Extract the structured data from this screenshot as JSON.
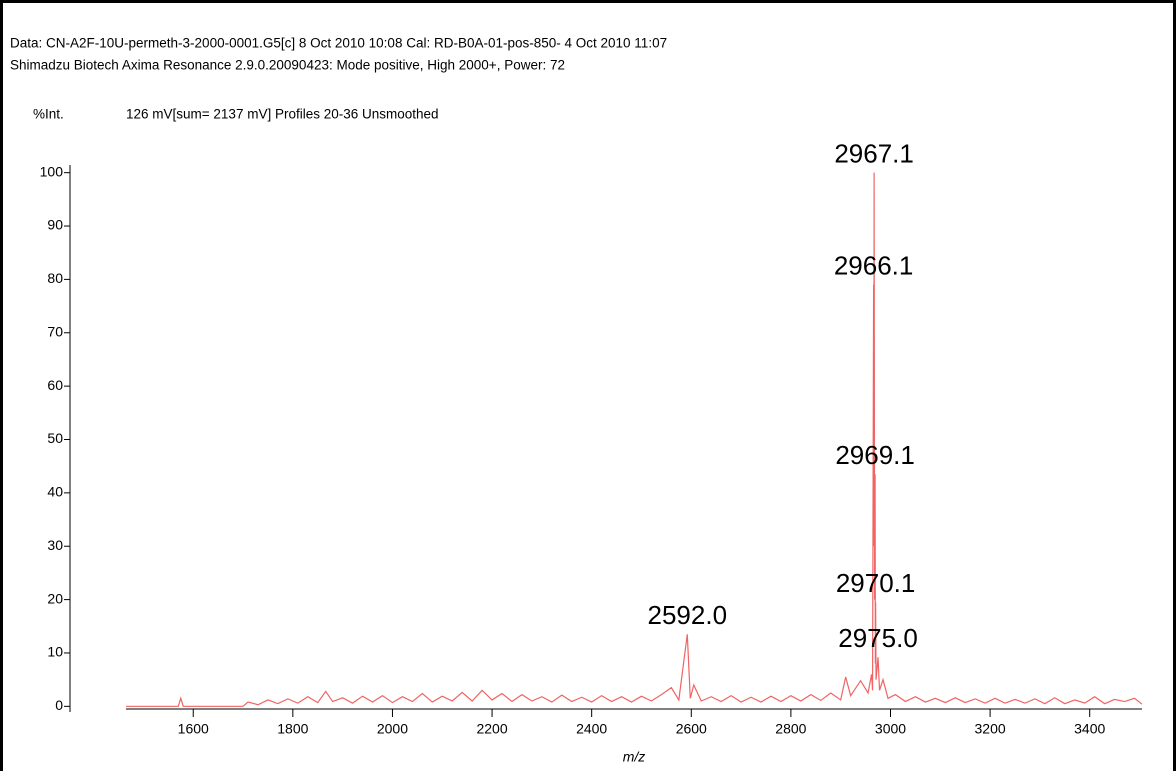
{
  "chart_data": {
    "type": "line",
    "header": [
      "Data: CN-A2F-10U-permeth-3-2000-0001.G5[c] 8 Oct 2010 10:08 Cal: RD-B0A-01-pos-850- 4 Oct 2010 11:07",
      "Shimadzu Biotech Axima Resonance 2.9.0.20090423: Mode positive, High 2000+, Power: 72"
    ],
    "ylabel": "%Int.",
    "subtitle": "126 mV[sum= 2137 mV]  Profiles 20-36 Unsmoothed",
    "xlabel": "m/z",
    "xlim": [
      1465,
      3505
    ],
    "ylim": [
      -0.5,
      100.5
    ],
    "xticks": [
      1600,
      1800,
      2000,
      2200,
      2400,
      2600,
      2800,
      3000,
      3200,
      3400
    ],
    "yticks": [
      0,
      10,
      20,
      30,
      40,
      50,
      60,
      70,
      80,
      90,
      100
    ],
    "x": [
      1465,
      1570,
      1575,
      1580,
      1700,
      1710,
      1730,
      1750,
      1770,
      1790,
      1810,
      1830,
      1850,
      1866,
      1880,
      1900,
      1920,
      1940,
      1960,
      1980,
      2000,
      2020,
      2040,
      2060,
      2080,
      2100,
      2120,
      2140,
      2160,
      2180,
      2200,
      2220,
      2240,
      2260,
      2280,
      2300,
      2320,
      2340,
      2360,
      2380,
      2400,
      2420,
      2440,
      2460,
      2480,
      2500,
      2520,
      2540,
      2560,
      2575,
      2592,
      2598,
      2605,
      2620,
      2640,
      2660,
      2680,
      2700,
      2720,
      2740,
      2760,
      2780,
      2800,
      2820,
      2840,
      2860,
      2880,
      2900,
      2910,
      2920,
      2940,
      2955,
      2962,
      2964,
      2966.1,
      2966.6,
      2967.1,
      2968.1,
      2969.1,
      2969.6,
      2970.1,
      2971,
      2975,
      2978,
      2985,
      2995,
      3010,
      3030,
      3050,
      3070,
      3090,
      3110,
      3130,
      3150,
      3170,
      3190,
      3210,
      3230,
      3250,
      3270,
      3290,
      3310,
      3330,
      3350,
      3370,
      3390,
      3410,
      3430,
      3450,
      3470,
      3490,
      3505
    ],
    "series": [
      {
        "color": "#f06464",
        "values": [
          0,
          0,
          1.5,
          0,
          0,
          0.8,
          0.3,
          1.2,
          0.5,
          1.4,
          0.6,
          1.8,
          0.7,
          2.8,
          0.9,
          1.6,
          0.6,
          1.9,
          0.8,
          2.0,
          0.7,
          1.8,
          0.9,
          2.4,
          0.8,
          1.9,
          1.0,
          2.6,
          1.0,
          3.0,
          1.2,
          2.4,
          0.9,
          2.2,
          1.0,
          1.8,
          0.8,
          2.1,
          0.9,
          1.7,
          0.8,
          2.0,
          0.9,
          1.8,
          0.8,
          1.9,
          1.0,
          2.2,
          3.5,
          1.2,
          13.5,
          1.5,
          4,
          1.0,
          1.8,
          0.9,
          2.0,
          0.8,
          1.7,
          0.8,
          1.9,
          0.9,
          2.0,
          1.0,
          2.2,
          1.1,
          2.5,
          1.2,
          5.5,
          2.0,
          4.8,
          2.5,
          6,
          3,
          79,
          30,
          100,
          20,
          43.5,
          8,
          19.5,
          5,
          9.2,
          3,
          5,
          1.5,
          2.2,
          0.9,
          1.8,
          0.8,
          1.5,
          0.7,
          1.6,
          0.7,
          1.4,
          0.6,
          1.5,
          0.6,
          1.3,
          0.6,
          1.4,
          0.5,
          1.6,
          0.5,
          1.2,
          0.6,
          1.8,
          0.5,
          1.3,
          0.9,
          1.5,
          0.4
        ]
      }
    ],
    "annotations": [
      {
        "text": "2967.1",
        "x": 2967.1,
        "y": 100
      },
      {
        "text": "2966.1",
        "x": 2966.1,
        "y": 79
      },
      {
        "text": "2969.1",
        "x": 2969.1,
        "y": 43.5
      },
      {
        "text": "2970.1",
        "x": 2970.1,
        "y": 19.5
      },
      {
        "text": "2975.0",
        "x": 2975,
        "y": 9.2
      },
      {
        "text": "2592.0",
        "x": 2592,
        "y": 13.5
      }
    ]
  }
}
